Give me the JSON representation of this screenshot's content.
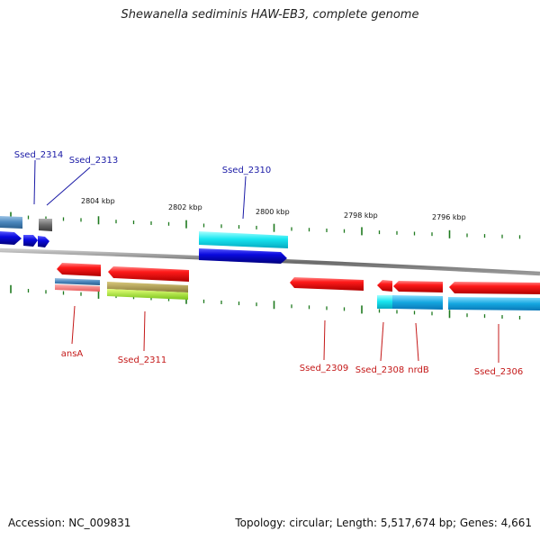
{
  "title": "Shewanella sediminis HAW-EB3, complete genome",
  "footer": {
    "accession": "Accession: NC_009831",
    "summary": "Topology: circular; Length: 5,517,674 bp; Genes: 4,661"
  },
  "colors": {
    "label_blue": "#1a1aa6",
    "label_red": "#c41818",
    "tick_green": "#1e7a1e",
    "backbone": "#7a7a7a"
  },
  "scale_labels": [
    "2804 kbp",
    "2802 kbp",
    "2800 kbp",
    "2798 kbp",
    "2796 kbp"
  ],
  "genes_top": [
    {
      "label": "Ssed_2314"
    },
    {
      "label": "Ssed_2313"
    },
    {
      "label": "Ssed_2310"
    }
  ],
  "genes_bottom": [
    {
      "label": "ansA"
    },
    {
      "label": "Ssed_2311"
    },
    {
      "label": "Ssed_2309"
    },
    {
      "label": "Ssed_2308"
    },
    {
      "label": "nrdB"
    },
    {
      "label": "Ssed_2306"
    }
  ]
}
